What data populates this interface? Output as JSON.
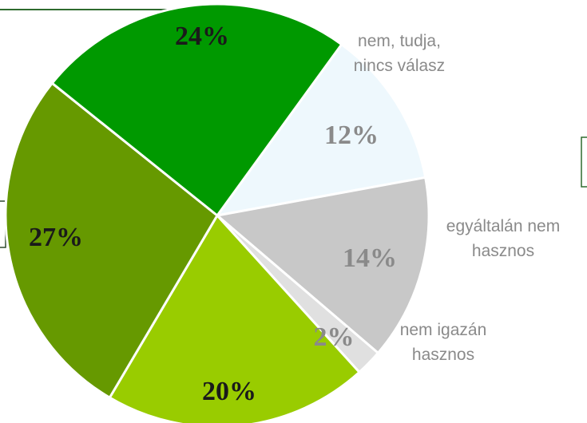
{
  "chart_data": {
    "type": "pie",
    "categories": [
      "nem, tudja,\nnincs válasz",
      "egyáltalán nem\nhasznos",
      "nem igazán\nhasznos",
      null,
      null,
      null
    ],
    "values": [
      12,
      14,
      2,
      20,
      27,
      24
    ],
    "value_labels": [
      "12%",
      "14%",
      "2%",
      "20%",
      "27%",
      "24%"
    ],
    "colors": [
      "#eef8fd",
      "#c8c8c8",
      "#e0e0e0",
      "#99cc00",
      "#669900",
      "#009900"
    ]
  }
}
